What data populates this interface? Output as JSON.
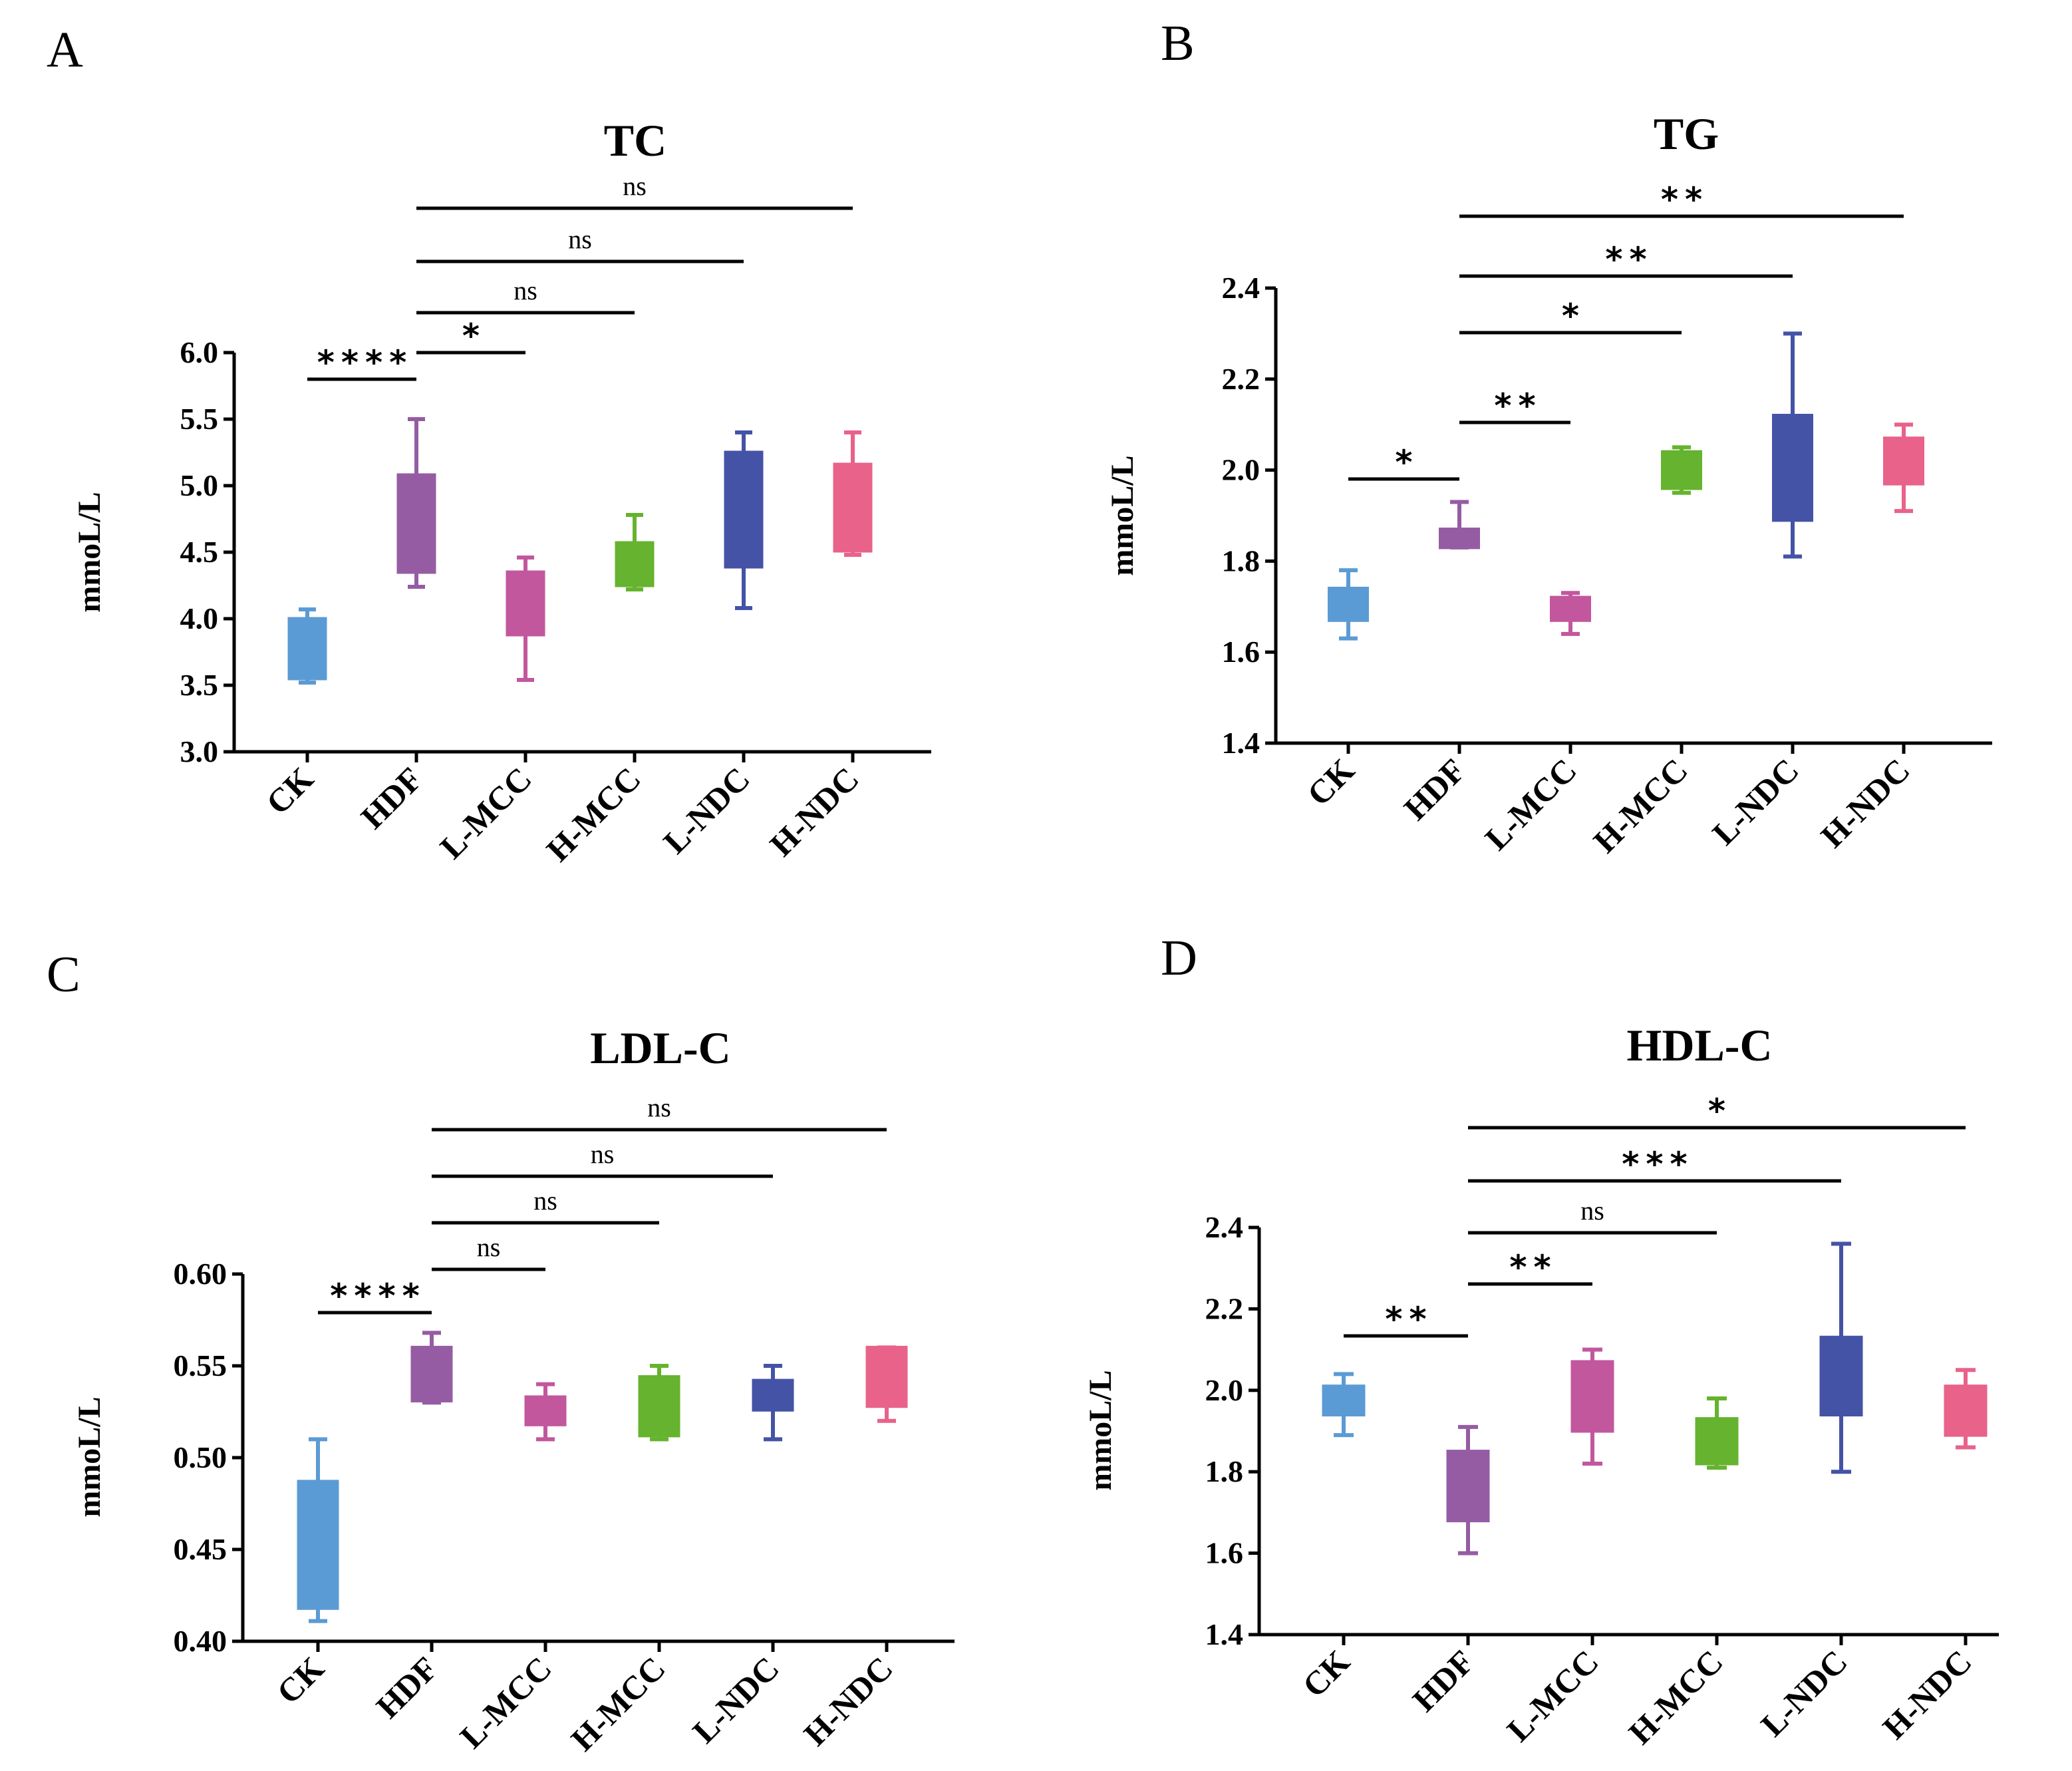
{
  "chart_data": [
    {
      "type": "box",
      "panel": "A",
      "title": "TC",
      "ylabel": "mmoL/L",
      "ylim": [
        3.0,
        6.0
      ],
      "yticks": [
        "3.0",
        "3.5",
        "4.0",
        "4.5",
        "5.0",
        "5.5",
        "6.0"
      ],
      "categories": [
        "CK",
        "HDF",
        "L-MCC",
        "H-MCC",
        "L-NDC",
        "H-NDC"
      ],
      "boxes": [
        {
          "min": 3.52,
          "q1": 3.55,
          "q3": 4.0,
          "max": 4.07,
          "color": "#5B9BD5"
        },
        {
          "min": 4.24,
          "q1": 4.35,
          "q3": 5.08,
          "max": 5.5,
          "color": "#955CA3"
        },
        {
          "min": 3.54,
          "q1": 3.88,
          "q3": 4.35,
          "max": 4.46,
          "color": "#C2579D"
        },
        {
          "min": 4.22,
          "q1": 4.25,
          "q3": 4.57,
          "max": 4.78,
          "color": "#65B32E"
        },
        {
          "min": 4.08,
          "q1": 4.39,
          "q3": 5.25,
          "max": 5.4,
          "color": "#4453A6"
        },
        {
          "min": 4.48,
          "q1": 4.51,
          "q3": 5.16,
          "max": 5.4,
          "color": "#E8628A"
        }
      ],
      "comparisons": [
        {
          "from": "CK",
          "to": "HDF",
          "label": "****"
        },
        {
          "from": "HDF",
          "to": "L-MCC",
          "label": "*"
        },
        {
          "from": "HDF",
          "to": "H-MCC",
          "label": "ns"
        },
        {
          "from": "HDF",
          "to": "L-NDC",
          "label": "ns"
        },
        {
          "from": "HDF",
          "to": "H-NDC",
          "label": "ns"
        }
      ]
    },
    {
      "type": "box",
      "panel": "B",
      "title": "TG",
      "ylabel": "mmoL/L",
      "ylim": [
        1.4,
        2.4
      ],
      "yticks": [
        "1.4",
        "1.6",
        "1.8",
        "2.0",
        "2.2",
        "2.4"
      ],
      "categories": [
        "CK",
        "HDF",
        "L-MCC",
        "H-MCC",
        "L-NDC",
        "H-NDC"
      ],
      "boxes": [
        {
          "min": 1.63,
          "q1": 1.67,
          "q3": 1.74,
          "max": 1.78,
          "color": "#5B9BD5"
        },
        {
          "min": 1.83,
          "q1": 1.83,
          "q3": 1.87,
          "max": 1.93,
          "color": "#955CA3"
        },
        {
          "min": 1.64,
          "q1": 1.67,
          "q3": 1.72,
          "max": 1.73,
          "color": "#C2579D"
        },
        {
          "min": 1.95,
          "q1": 1.96,
          "q3": 2.04,
          "max": 2.05,
          "color": "#65B32E"
        },
        {
          "min": 1.81,
          "q1": 1.89,
          "q3": 2.12,
          "max": 2.3,
          "color": "#4453A6"
        },
        {
          "min": 1.91,
          "q1": 1.97,
          "q3": 2.07,
          "max": 2.1,
          "color": "#E8628A"
        }
      ],
      "comparisons": [
        {
          "from": "CK",
          "to": "HDF",
          "label": "*"
        },
        {
          "from": "HDF",
          "to": "L-MCC",
          "label": "**"
        },
        {
          "from": "HDF",
          "to": "H-MCC",
          "label": "*"
        },
        {
          "from": "HDF",
          "to": "L-NDC",
          "label": "**"
        },
        {
          "from": "HDF",
          "to": "H-NDC",
          "label": "**"
        }
      ]
    },
    {
      "type": "box",
      "panel": "C",
      "title": "LDL-C",
      "ylabel": "mmoL/L",
      "ylim": [
        0.4,
        0.6
      ],
      "yticks": [
        "0.40",
        "0.45",
        "0.50",
        "0.55",
        "0.60"
      ],
      "categories": [
        "CK",
        "HDF",
        "L-MCC",
        "H-MCC",
        "L-NDC",
        "H-NDC"
      ],
      "boxes": [
        {
          "min": 0.411,
          "q1": 0.418,
          "q3": 0.487,
          "max": 0.51,
          "color": "#5B9BD5"
        },
        {
          "min": 0.53,
          "q1": 0.531,
          "q3": 0.56,
          "max": 0.568,
          "color": "#955CA3"
        },
        {
          "min": 0.51,
          "q1": 0.518,
          "q3": 0.533,
          "max": 0.54,
          "color": "#C2579D"
        },
        {
          "min": 0.51,
          "q1": 0.512,
          "q3": 0.544,
          "max": 0.55,
          "color": "#65B32E"
        },
        {
          "min": 0.51,
          "q1": 0.526,
          "q3": 0.542,
          "max": 0.55,
          "color": "#4453A6"
        },
        {
          "min": 0.52,
          "q1": 0.528,
          "q3": 0.56,
          "max": 0.56,
          "color": "#E8628A"
        }
      ],
      "comparisons": [
        {
          "from": "CK",
          "to": "HDF",
          "label": "****"
        },
        {
          "from": "HDF",
          "to": "L-MCC",
          "label": "ns"
        },
        {
          "from": "HDF",
          "to": "H-MCC",
          "label": "ns"
        },
        {
          "from": "HDF",
          "to": "L-NDC",
          "label": "ns"
        },
        {
          "from": "HDF",
          "to": "H-NDC",
          "label": "ns"
        }
      ]
    },
    {
      "type": "box",
      "panel": "D",
      "title": "HDL-C",
      "ylabel": "mmoL/L",
      "ylim": [
        1.4,
        2.4
      ],
      "yticks": [
        "1.4",
        "1.6",
        "1.8",
        "2.0",
        "2.2",
        "2.4"
      ],
      "categories": [
        "CK",
        "HDF",
        "L-MCC",
        "H-MCC",
        "L-NDC",
        "H-NDC"
      ],
      "boxes": [
        {
          "min": 1.89,
          "q1": 1.94,
          "q3": 2.01,
          "max": 2.04,
          "color": "#5B9BD5"
        },
        {
          "min": 1.6,
          "q1": 1.68,
          "q3": 1.85,
          "max": 1.91,
          "color": "#955CA3"
        },
        {
          "min": 1.82,
          "q1": 1.9,
          "q3": 2.07,
          "max": 2.1,
          "color": "#C2579D"
        },
        {
          "min": 1.81,
          "q1": 1.82,
          "q3": 1.93,
          "max": 1.98,
          "color": "#65B32E"
        },
        {
          "min": 1.8,
          "q1": 1.94,
          "q3": 2.13,
          "max": 2.36,
          "color": "#4453A6"
        },
        {
          "min": 1.86,
          "q1": 1.89,
          "q3": 2.01,
          "max": 2.05,
          "color": "#E8628A"
        }
      ],
      "comparisons": [
        {
          "from": "CK",
          "to": "HDF",
          "label": "**"
        },
        {
          "from": "HDF",
          "to": "L-MCC",
          "label": "**"
        },
        {
          "from": "HDF",
          "to": "H-MCC",
          "label": "ns"
        },
        {
          "from": "HDF",
          "to": "L-NDC",
          "label": "***"
        },
        {
          "from": "HDF",
          "to": "H-NDC",
          "label": "*"
        }
      ]
    }
  ]
}
